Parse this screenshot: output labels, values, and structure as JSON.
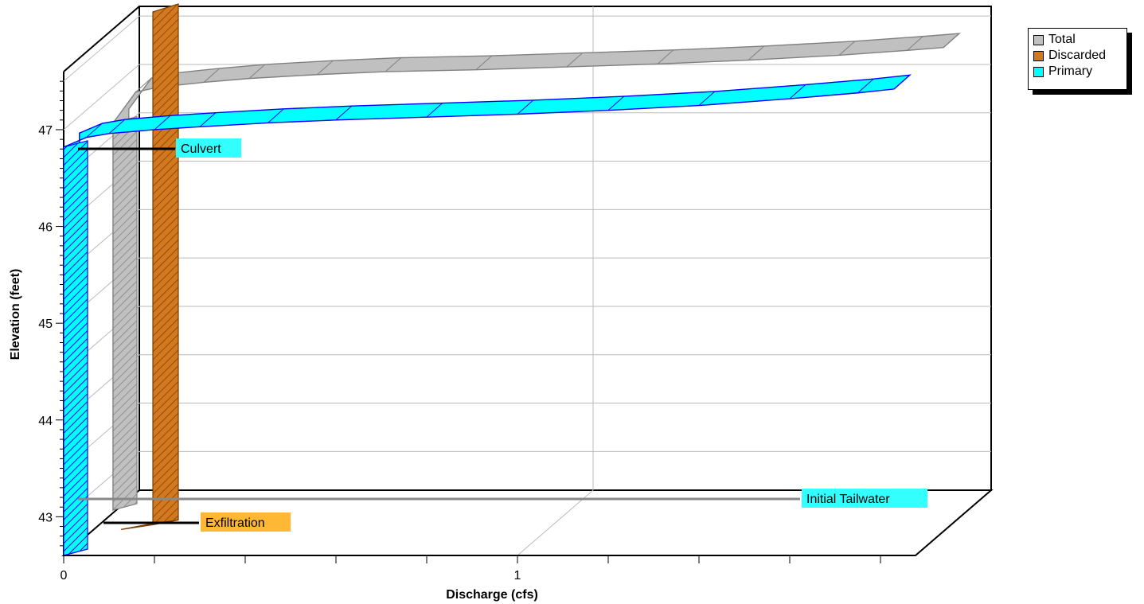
{
  "chart_data": {
    "type": "area",
    "title": "",
    "xlabel": "Discharge  (cfs)",
    "ylabel": "Elevation  (feet)",
    "xlim": [
      0,
      1.85
    ],
    "ylim": [
      42.6,
      47.6
    ],
    "x_ticks": [
      "0",
      "1"
    ],
    "y_ticks": [
      "43",
      "44",
      "45",
      "46",
      "47"
    ],
    "grid": true,
    "legend_position": "top-right",
    "series": [
      {
        "name": "Total",
        "color": "#c0c0c0",
        "edge": "#808080",
        "x": [
          0.0,
          0.0,
          0.05,
          0.1,
          0.2,
          0.3,
          0.45,
          0.6,
          0.8,
          1.0,
          1.2,
          1.4,
          1.6,
          1.75,
          1.83
        ],
        "y": [
          42.6,
          46.6,
          46.92,
          46.97,
          47.02,
          47.06,
          47.1,
          47.13,
          47.15,
          47.18,
          47.21,
          47.25,
          47.3,
          47.35,
          47.38
        ]
      },
      {
        "name": "Discarded",
        "color": "#d2781e",
        "edge": "#7a3d00",
        "x": [
          0.0,
          0.0
        ],
        "y": [
          42.6,
          47.9
        ]
      },
      {
        "name": "Primary",
        "color": "#00ffff",
        "edge": "#0000ff",
        "x": [
          0.0,
          0.0,
          0.05,
          0.1,
          0.2,
          0.3,
          0.45,
          0.6,
          0.8,
          1.0,
          1.2,
          1.4,
          1.6,
          1.75,
          1.83
        ],
        "y": [
          42.6,
          46.82,
          46.92,
          46.96,
          47.0,
          47.03,
          47.07,
          47.1,
          47.13,
          47.16,
          47.2,
          47.25,
          47.32,
          47.38,
          47.42
        ]
      }
    ],
    "annotations": [
      {
        "label": "Culvert",
        "elevation": 46.82,
        "bg": "#33ffff"
      },
      {
        "label": "Initial Tailwater",
        "elevation": 43.1,
        "bg": "#33ffff"
      },
      {
        "label": "Exfiltration",
        "elevation": 42.83,
        "bg": "#ffb833"
      }
    ]
  }
}
